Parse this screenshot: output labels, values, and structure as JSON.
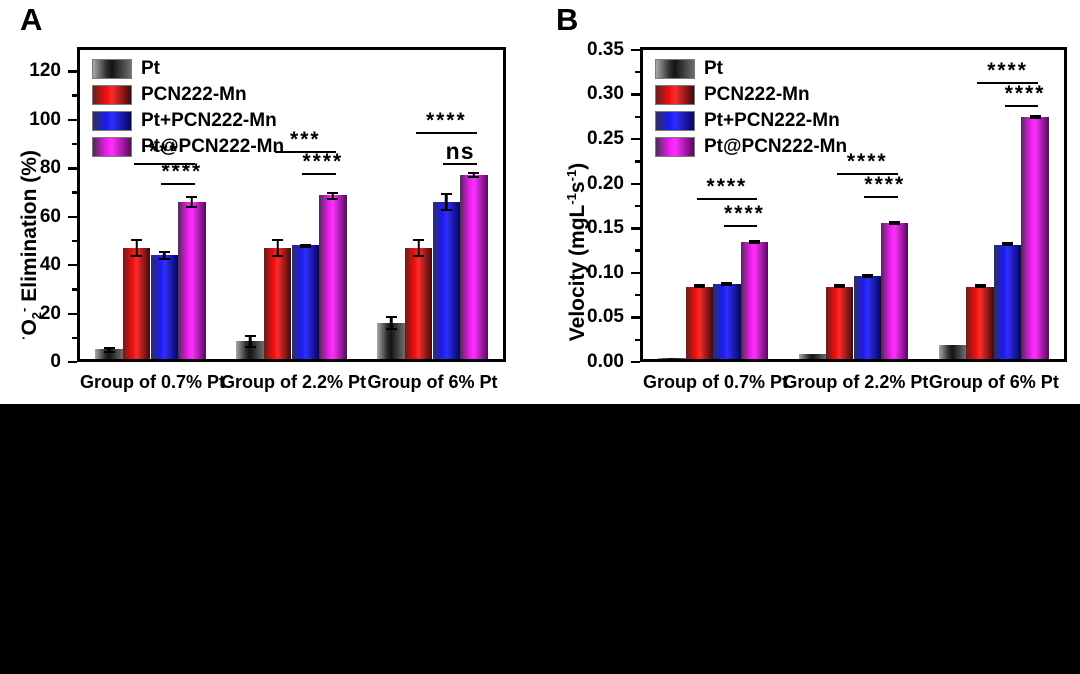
{
  "figure": {
    "background_color": "#ffffff",
    "footer_color": "#000000",
    "text_color": "#000000"
  },
  "series_styles": [
    {
      "name": "Pt",
      "colors": [
        "#a8a8a8",
        "#2e2e2e",
        "#141414",
        "#6e6e6e"
      ]
    },
    {
      "name": "PCN222-Mn",
      "colors": [
        "#5c2222",
        "#f01010",
        "#ff2a2a",
        "#450707"
      ]
    },
    {
      "name": "Pt+PCN222-Mn",
      "colors": [
        "#303052",
        "#1c1cf0",
        "#2e2eff",
        "#050566"
      ]
    },
    {
      "name": "Pt@PCN222-Mn",
      "colors": [
        "#44304e",
        "#ef1fef",
        "#ff30ff",
        "#5a0662"
      ]
    }
  ],
  "chart_data": [
    {
      "type": "bar",
      "panel_letter": "A",
      "title": "",
      "xlabel": "",
      "ylabel_plain": "·O2- Elimination (%)",
      "ylabel_segments": [
        {
          "t": "·",
          "m": "sup"
        },
        {
          "t": "O"
        },
        {
          "t": "2",
          "m": "sub"
        },
        {
          "t": "-",
          "m": "sup"
        },
        {
          "t": " Elimination (%)"
        }
      ],
      "categories": [
        "Group of 0.7% Pt",
        "Group of 2.2% Pt",
        "Group of 6% Pt"
      ],
      "series": [
        {
          "name": "Pt",
          "values": [
            4,
            7.5,
            15
          ],
          "errors": [
            1.5,
            3,
            3
          ]
        },
        {
          "name": "PCN222-Mn",
          "values": [
            46,
            46,
            46
          ],
          "errors": [
            4,
            4,
            4
          ]
        },
        {
          "name": "Pt+PCN222-Mn",
          "values": [
            43,
            47,
            65
          ],
          "errors": [
            2,
            1,
            4
          ]
        },
        {
          "name": "Pt@PCN222-Mn",
          "values": [
            65,
            67.5,
            76
          ],
          "errors": [
            2.5,
            2,
            1.5
          ]
        }
      ],
      "ylim": [
        0,
        130
      ],
      "ytick_values": [
        0,
        20,
        40,
        60,
        80,
        100,
        120
      ],
      "ytick_labels": [
        "0",
        "20",
        "40",
        "60",
        "80",
        "100",
        "120"
      ],
      "minor_tick_step": 10,
      "grid": false,
      "legend": [
        "Pt",
        "PCN222-Mn",
        "Pt+PCN222-Mn",
        "Pt@PCN222-Mn"
      ],
      "legend_position": "top-left",
      "annotations": [
        {
          "group": 0,
          "label": "***",
          "y": 80,
          "from_series": 1,
          "to_series": 3
        },
        {
          "group": 0,
          "label": "****",
          "y": 72,
          "from_series": 2,
          "to_series": 3
        },
        {
          "group": 1,
          "label": "***",
          "y": 85,
          "from_series": 1,
          "to_series": 3
        },
        {
          "group": 1,
          "label": "****",
          "y": 76,
          "from_series": 2,
          "to_series": 3
        },
        {
          "group": 2,
          "label": "****",
          "y": 93,
          "from_series": 1,
          "to_series": 3
        },
        {
          "group": 2,
          "label": "ns",
          "y": 80,
          "from_series": 2,
          "to_series": 3
        }
      ]
    },
    {
      "type": "bar",
      "panel_letter": "B",
      "title": "",
      "xlabel": "",
      "ylabel_plain": "Velocity (mgL-1s-1)",
      "ylabel_segments": [
        {
          "t": "Velocity (mgL"
        },
        {
          "t": "-1",
          "m": "sup"
        },
        {
          "t": "s"
        },
        {
          "t": "-1",
          "m": "sup"
        },
        {
          "t": ")"
        }
      ],
      "categories": [
        "Group of 0.7% Pt",
        "Group of 2.2% Pt",
        "Group of 6% Pt"
      ],
      "series": [
        {
          "name": "Pt",
          "values": [
            0.001,
            0.006,
            0.016
          ],
          "errors": [
            0,
            0,
            0
          ]
        },
        {
          "name": "PCN222-Mn",
          "values": [
            0.081,
            0.081,
            0.081
          ],
          "errors": [
            0.001,
            0.001,
            0.001
          ]
        },
        {
          "name": "Pt+PCN222-Mn",
          "values": [
            0.084,
            0.093,
            0.128
          ],
          "errors": [
            0.002,
            0.002,
            0.001
          ]
        },
        {
          "name": "Pt@PCN222-Mn",
          "values": [
            0.131,
            0.152,
            0.271
          ],
          "errors": [
            0.002,
            0.002,
            0.002
          ]
        }
      ],
      "ylim": [
        0,
        0.353
      ],
      "ytick_values": [
        0,
        0.05,
        0.1,
        0.15,
        0.2,
        0.25,
        0.3,
        0.35
      ],
      "ytick_labels": [
        "0.00",
        "0.05",
        "0.10",
        "0.15",
        "0.20",
        "0.25",
        "0.30",
        "0.35"
      ],
      "minor_tick_step": 0.025,
      "grid": false,
      "legend": [
        "Pt",
        "PCN222-Mn",
        "Pt+PCN222-Mn",
        "Pt@PCN222-Mn"
      ],
      "legend_position": "top-left",
      "annotations": [
        {
          "group": 0,
          "label": "****",
          "y": 0.178,
          "from_series": 1,
          "to_series": 3
        },
        {
          "group": 0,
          "label": "****",
          "y": 0.148,
          "from_series": 2,
          "to_series": 3
        },
        {
          "group": 1,
          "label": "****",
          "y": 0.206,
          "from_series": 1,
          "to_series": 3
        },
        {
          "group": 1,
          "label": "****",
          "y": 0.18,
          "from_series": 2,
          "to_series": 3
        },
        {
          "group": 2,
          "label": "****",
          "y": 0.308,
          "from_series": 1,
          "to_series": 3
        },
        {
          "group": 2,
          "label": "****",
          "y": 0.282,
          "from_series": 2,
          "to_series": 3
        }
      ]
    }
  ]
}
